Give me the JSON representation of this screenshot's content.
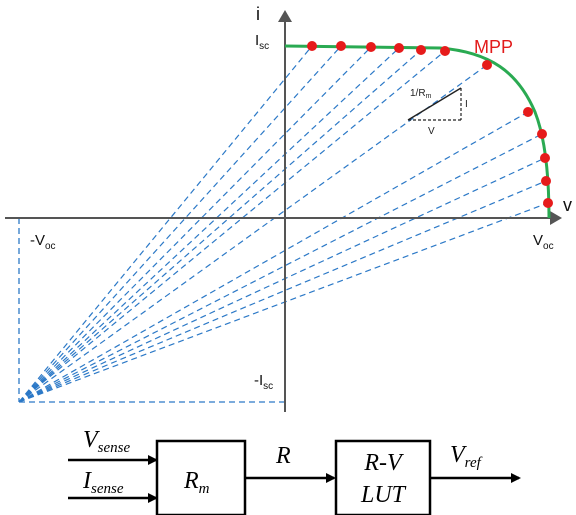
{
  "graph": {
    "y_axis_label": "i",
    "x_axis_label": "v",
    "isc_main": "I",
    "isc_sub": "sc",
    "voc_main": "V",
    "voc_sub": "oc",
    "neg_voc_main": "-V",
    "neg_voc_sub": "oc",
    "neg_isc_main": "-I",
    "neg_isc_sub": "sc",
    "mpp_label": "MPP",
    "slope_main": "1/R",
    "slope_sub": "m",
    "slope_i": "I",
    "slope_v": "V",
    "colors": {
      "curve": "#2aaa52",
      "points": "#e61b1b",
      "dashed": "#2c79c7",
      "mpp": "#e21b1b"
    }
  },
  "block_diagram": {
    "input1_main": "V",
    "input1_sub": "sense",
    "input2_main": "I",
    "input2_sub": "sense",
    "block1_main": "R",
    "block1_sub": "m",
    "signal_r": "R",
    "block2_line1": "R-V",
    "block2_line2": "LUT",
    "output_main": "V",
    "output_sub": "ref"
  }
}
